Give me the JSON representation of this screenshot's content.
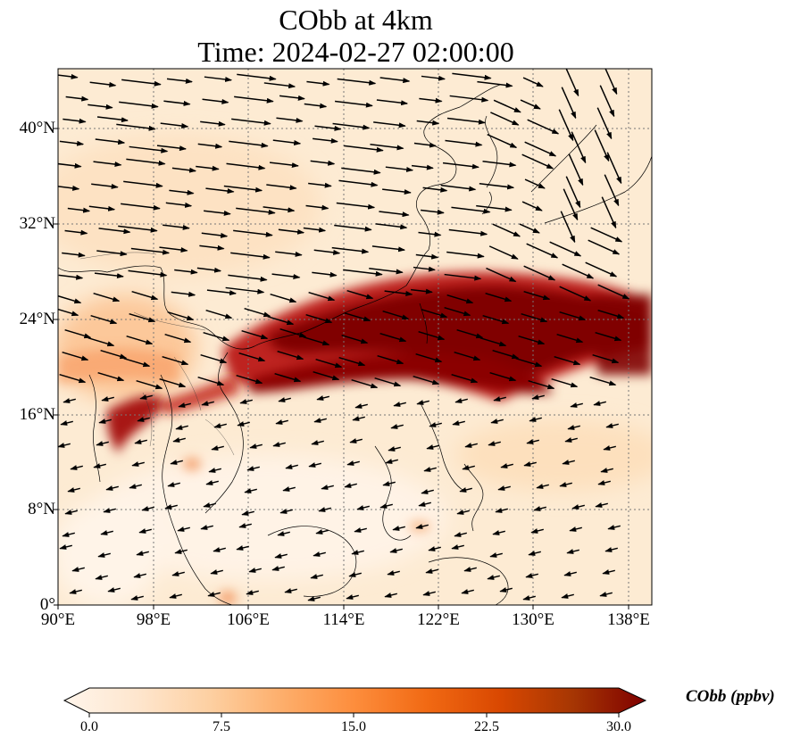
{
  "title_line1": "CObb at 4km",
  "title_line2": "Time: 2024-02-27 02:00:00",
  "map": {
    "lon_range": [
      90,
      140
    ],
    "lat_range": [
      0,
      45
    ],
    "lon_ticks": [
      {
        "value": 90,
        "label": "90°E"
      },
      {
        "value": 98,
        "label": "98°E"
      },
      {
        "value": 106,
        "label": "106°E"
      },
      {
        "value": 114,
        "label": "114°E"
      },
      {
        "value": 122,
        "label": "122°E"
      },
      {
        "value": 130,
        "label": "130°E"
      },
      {
        "value": 138,
        "label": "138°E"
      }
    ],
    "lat_ticks": [
      {
        "value": 0,
        "label": "0°"
      },
      {
        "value": 8,
        "label": "8°N"
      },
      {
        "value": 16,
        "label": "16°N"
      },
      {
        "value": 24,
        "label": "24°N"
      },
      {
        "value": 32,
        "label": "32°N"
      },
      {
        "value": 40,
        "label": "40°N"
      }
    ],
    "gridlines": "dotted"
  },
  "colorbar": {
    "label": "CObb (ppbv)",
    "min": 0.0,
    "max": 30.0,
    "ticks": [
      "0.0",
      "7.5",
      "15.0",
      "22.5",
      "30.0"
    ],
    "colors": [
      "#fff5eb",
      "#fee6ce",
      "#fdd0a2",
      "#fdae6b",
      "#fd8d3c",
      "#f16913",
      "#d94801",
      "#a63603",
      "#7f2704"
    ],
    "extend": "both"
  }
}
